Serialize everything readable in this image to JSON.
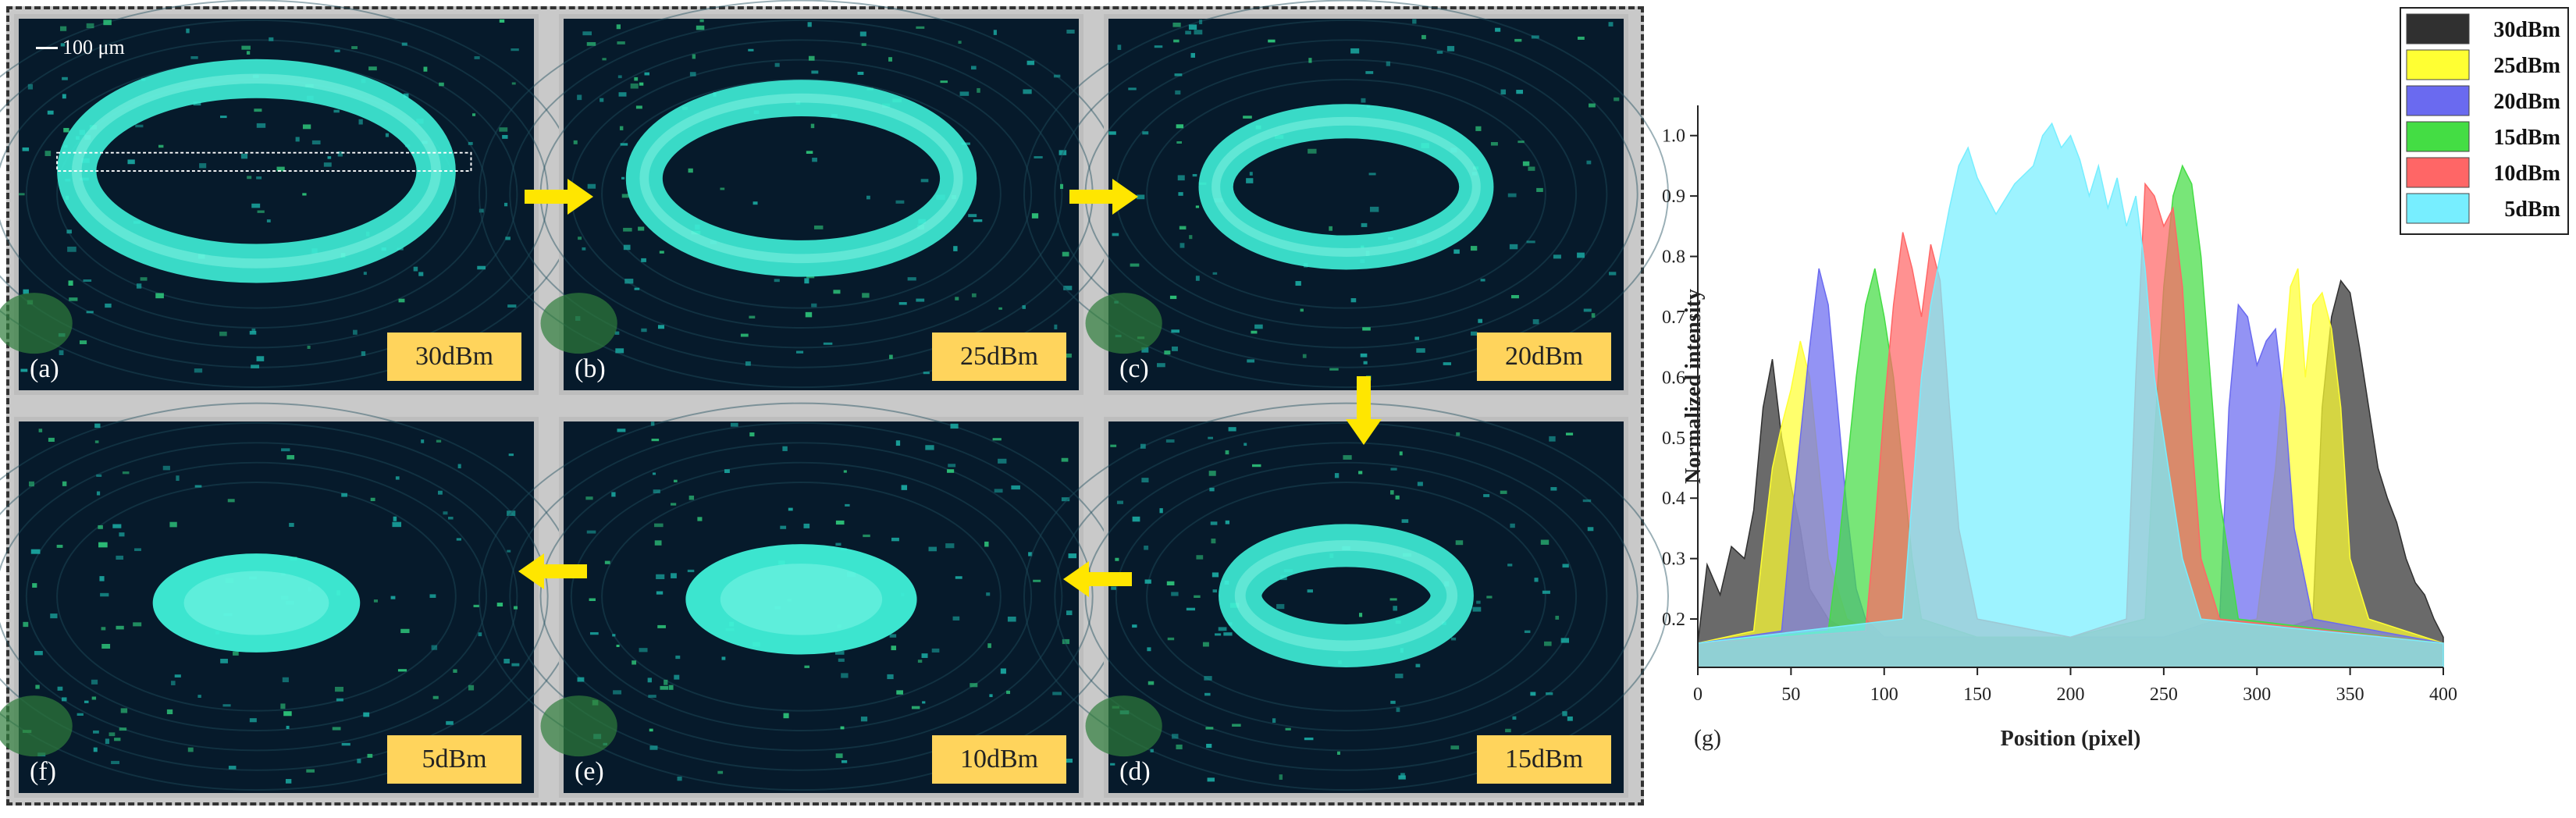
{
  "panels": [
    {
      "id": "a",
      "letter": "(a)",
      "power": "30dBm",
      "ring_outer": 1.0,
      "ring_width": 0.32,
      "filled": false
    },
    {
      "id": "b",
      "letter": "(b)",
      "power": "25dBm",
      "ring_outer": 0.88,
      "ring_width": 0.34,
      "filled": false
    },
    {
      "id": "c",
      "letter": "(c)",
      "power": "20dBm",
      "ring_outer": 0.74,
      "ring_width": 0.38,
      "filled": false
    },
    {
      "id": "f",
      "letter": "(f)",
      "power": "5dBm",
      "ring_outer": 0.52,
      "ring_width": 1.0,
      "filled": true
    },
    {
      "id": "e",
      "letter": "(e)",
      "power": "10dBm",
      "ring_outer": 0.58,
      "ring_width": 1.0,
      "filled": true
    },
    {
      "id": "d",
      "letter": "(d)",
      "power": "15dBm",
      "ring_outer": 0.64,
      "ring_width": 0.55,
      "filled": false
    }
  ],
  "scale_bar": "100 μm",
  "colors": {
    "fluorescence": "#3ff0d8",
    "background": "#061a2b",
    "arrow": "#ffe600",
    "label_box": "#ffd45c"
  },
  "chart_data": {
    "type": "area",
    "panel_tag": "(g)",
    "xlabel": "Position (pixel)",
    "ylabel": "Normalized intensity",
    "xlim": [
      0,
      400
    ],
    "ylim": [
      0.12,
      1.05
    ],
    "xticks": [
      0,
      50,
      100,
      150,
      200,
      250,
      300,
      350,
      400
    ],
    "yticks": [
      0.2,
      0.3,
      0.4,
      0.5,
      0.6,
      0.7,
      0.8,
      0.9,
      1.0
    ],
    "legend_position": "top-right",
    "series": [
      {
        "name": "30dBm",
        "color": "#303030",
        "x": [
          0,
          5,
          12,
          18,
          25,
          30,
          35,
          40,
          45,
          50,
          55,
          60,
          70,
          80,
          90,
          100,
          150,
          200,
          250,
          300,
          330,
          335,
          340,
          345,
          350,
          355,
          360,
          365,
          370,
          375,
          380,
          385,
          390,
          395,
          400
        ],
        "y": [
          0.16,
          0.29,
          0.24,
          0.32,
          0.3,
          0.38,
          0.55,
          0.63,
          0.5,
          0.42,
          0.35,
          0.25,
          0.2,
          0.18,
          0.18,
          0.17,
          0.17,
          0.17,
          0.17,
          0.17,
          0.2,
          0.55,
          0.7,
          0.76,
          0.74,
          0.65,
          0.55,
          0.45,
          0.4,
          0.36,
          0.3,
          0.26,
          0.24,
          0.2,
          0.17
        ]
      },
      {
        "name": "25dBm",
        "color": "#ffff33",
        "x": [
          0,
          30,
          35,
          40,
          45,
          50,
          55,
          60,
          65,
          70,
          80,
          100,
          150,
          200,
          250,
          300,
          310,
          318,
          322,
          326,
          330,
          335,
          340,
          345,
          350,
          360,
          400
        ],
        "y": [
          0.16,
          0.18,
          0.32,
          0.45,
          0.52,
          0.58,
          0.66,
          0.6,
          0.45,
          0.3,
          0.2,
          0.17,
          0.17,
          0.17,
          0.17,
          0.2,
          0.45,
          0.75,
          0.78,
          0.6,
          0.72,
          0.74,
          0.68,
          0.55,
          0.3,
          0.2,
          0.16
        ]
      },
      {
        "name": "20dBm",
        "color": "#6a6af0",
        "x": [
          0,
          45,
          50,
          55,
          60,
          65,
          70,
          75,
          80,
          85,
          90,
          100,
          150,
          200,
          250,
          280,
          285,
          290,
          295,
          300,
          305,
          310,
          315,
          320,
          330,
          400
        ],
        "y": [
          0.16,
          0.18,
          0.35,
          0.5,
          0.65,
          0.78,
          0.72,
          0.55,
          0.38,
          0.25,
          0.2,
          0.17,
          0.17,
          0.17,
          0.17,
          0.2,
          0.55,
          0.72,
          0.7,
          0.62,
          0.66,
          0.68,
          0.55,
          0.35,
          0.2,
          0.16
        ]
      },
      {
        "name": "15dBm",
        "color": "#44dd44",
        "x": [
          0,
          70,
          75,
          80,
          85,
          90,
          95,
          100,
          105,
          110,
          115,
          120,
          150,
          200,
          240,
          245,
          250,
          255,
          260,
          265,
          270,
          275,
          280,
          290,
          400
        ],
        "y": [
          0.16,
          0.18,
          0.3,
          0.45,
          0.6,
          0.72,
          0.78,
          0.7,
          0.6,
          0.45,
          0.3,
          0.2,
          0.17,
          0.17,
          0.2,
          0.5,
          0.75,
          0.9,
          0.95,
          0.92,
          0.8,
          0.6,
          0.4,
          0.2,
          0.16
        ]
      },
      {
        "name": "10dBm",
        "color": "#ff6666",
        "x": [
          0,
          90,
          95,
          100,
          105,
          110,
          115,
          120,
          125,
          130,
          135,
          140,
          150,
          200,
          230,
          235,
          240,
          245,
          250,
          255,
          260,
          265,
          270,
          280,
          400
        ],
        "y": [
          0.16,
          0.18,
          0.35,
          0.55,
          0.72,
          0.84,
          0.78,
          0.7,
          0.82,
          0.76,
          0.55,
          0.35,
          0.2,
          0.17,
          0.2,
          0.6,
          0.92,
          0.9,
          0.85,
          0.88,
          0.75,
          0.5,
          0.3,
          0.2,
          0.16
        ]
      },
      {
        "name": "5dBm",
        "color": "#77eeff",
        "x": [
          0,
          110,
          115,
          120,
          125,
          130,
          135,
          140,
          145,
          150,
          155,
          160,
          170,
          180,
          185,
          190,
          195,
          200,
          205,
          210,
          215,
          220,
          225,
          230,
          235,
          240,
          245,
          250,
          255,
          260,
          270,
          400
        ],
        "y": [
          0.16,
          0.2,
          0.4,
          0.6,
          0.72,
          0.8,
          0.88,
          0.95,
          0.98,
          0.93,
          0.9,
          0.87,
          0.92,
          0.95,
          1.0,
          1.02,
          0.98,
          1.0,
          0.96,
          0.9,
          0.95,
          0.88,
          0.93,
          0.85,
          0.9,
          0.78,
          0.6,
          0.5,
          0.4,
          0.3,
          0.2,
          0.16
        ]
      }
    ]
  }
}
